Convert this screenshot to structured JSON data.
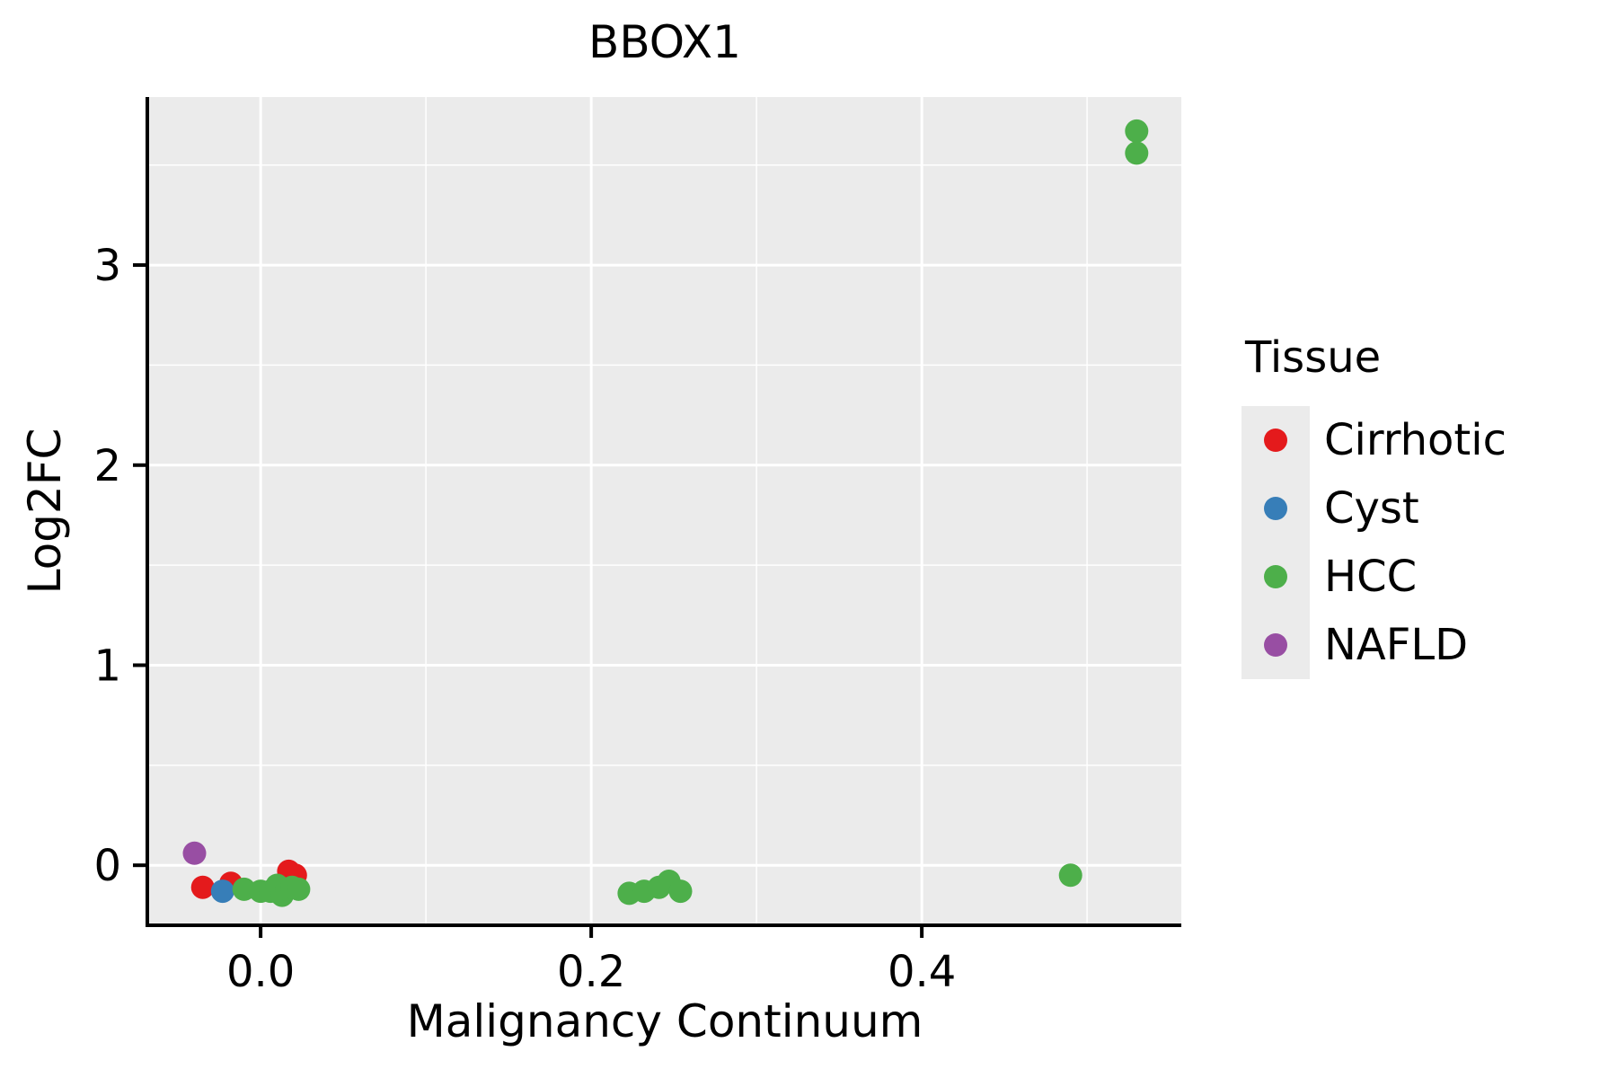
{
  "chart_data": {
    "type": "scatter",
    "title": "BBOX1",
    "xlabel": "Malignancy Continuum",
    "ylabel": "Log2FC",
    "xlim": [
      -0.068,
      0.557
    ],
    "ylim": [
      -0.3,
      3.84
    ],
    "x_ticks": [
      0.0,
      0.2,
      0.4
    ],
    "x_tick_labels": [
      "0.0",
      "0.2",
      "0.4"
    ],
    "x_minor_ticks": [
      0.1,
      0.3,
      0.5
    ],
    "y_ticks": [
      0,
      1,
      2,
      3
    ],
    "y_tick_labels": [
      "0",
      "1",
      "2",
      "3"
    ],
    "y_minor_ticks": [
      0.5,
      1.5,
      2.5,
      3.5
    ],
    "grid": "on",
    "colors": {
      "panel_bg": "#ebebeb",
      "grid": "#ffffff",
      "axis": "#000000",
      "text": "#000000"
    },
    "legend": {
      "title": "Tissue",
      "position": "right",
      "entries": [
        {
          "label": "Cirrhotic",
          "color": "#e41a1c"
        },
        {
          "label": "Cyst",
          "color": "#377eb8"
        },
        {
          "label": "HCC",
          "color": "#4daf4a"
        },
        {
          "label": "NAFLD",
          "color": "#984ea3"
        }
      ]
    },
    "series": [
      {
        "name": "Cirrhotic",
        "color": "#e41a1c",
        "points": [
          [
            -0.035,
            -0.11
          ],
          [
            -0.018,
            -0.09
          ],
          [
            0.017,
            -0.03
          ],
          [
            0.021,
            -0.05
          ]
        ]
      },
      {
        "name": "Cyst",
        "color": "#377eb8",
        "points": [
          [
            -0.023,
            -0.13
          ]
        ]
      },
      {
        "name": "HCC",
        "color": "#4daf4a",
        "points": [
          [
            -0.01,
            -0.12
          ],
          [
            0.0,
            -0.13
          ],
          [
            0.006,
            -0.13
          ],
          [
            0.01,
            -0.1
          ],
          [
            0.013,
            -0.15
          ],
          [
            0.016,
            -0.12
          ],
          [
            0.019,
            -0.11
          ],
          [
            0.023,
            -0.12
          ],
          [
            0.223,
            -0.14
          ],
          [
            0.232,
            -0.13
          ],
          [
            0.241,
            -0.11
          ],
          [
            0.247,
            -0.08
          ],
          [
            0.254,
            -0.13
          ],
          [
            0.49,
            -0.05
          ],
          [
            0.53,
            3.67
          ],
          [
            0.53,
            3.56
          ]
        ]
      },
      {
        "name": "NAFLD",
        "color": "#984ea3",
        "points": [
          [
            -0.04,
            0.06
          ]
        ]
      }
    ]
  }
}
